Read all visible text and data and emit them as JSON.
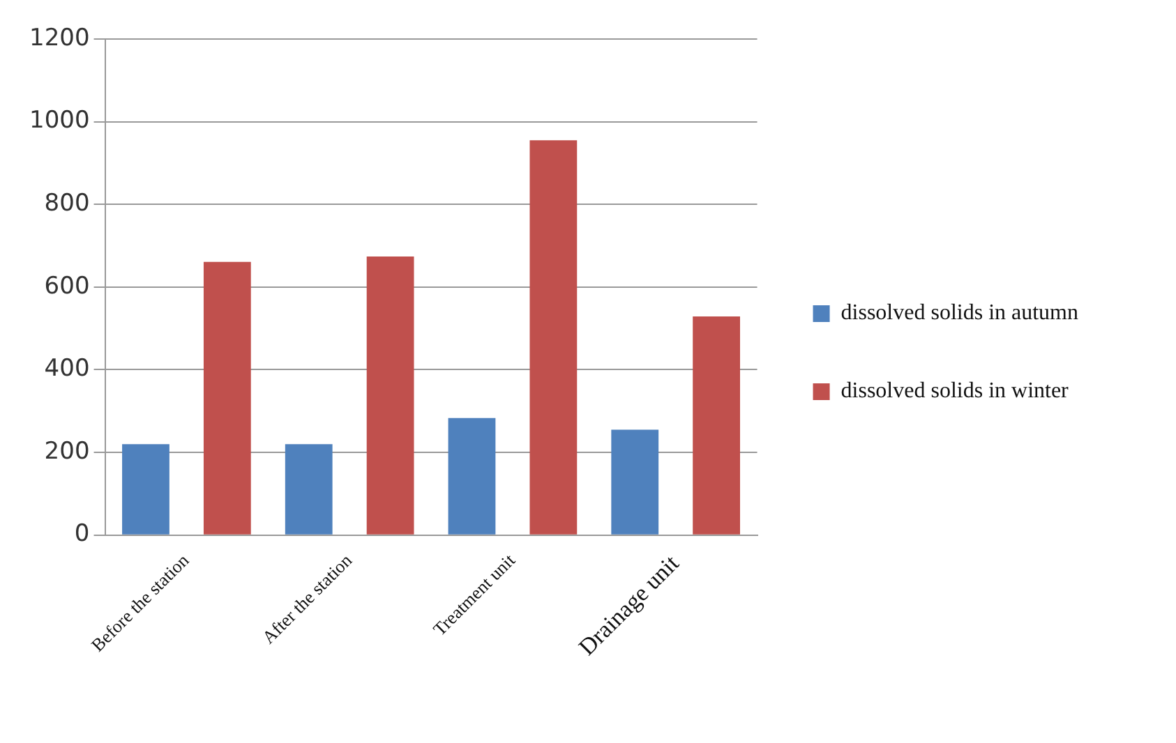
{
  "chart_data": {
    "type": "bar",
    "categories": [
      "Before the station",
      "After the station",
      "Treatment unit",
      "Drainage unit"
    ],
    "series": [
      {
        "name": "dissolved solids in autumn",
        "color": "#4f81bd",
        "values": [
          220,
          220,
          283,
          255
        ]
      },
      {
        "name": "dissolved solids in winter",
        "color": "#c0504d",
        "values": [
          661,
          674,
          955,
          529
        ]
      }
    ],
    "ylim": [
      0,
      1200
    ],
    "yticks": [
      0,
      200,
      400,
      600,
      800,
      1000,
      1200
    ],
    "grid": "y",
    "legend": "right"
  }
}
